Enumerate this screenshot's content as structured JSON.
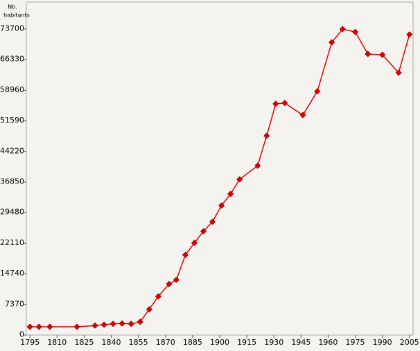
{
  "chart_data": {
    "type": "line",
    "y_label_line1": "Nb.",
    "y_label_line2": "habitants",
    "x": [
      1795,
      1800,
      1806,
      1821,
      1831,
      1836,
      1841,
      1846,
      1851,
      1856,
      1861,
      1866,
      1872,
      1876,
      1881,
      1886,
      1891,
      1896,
      1901,
      1906,
      1911,
      1921,
      1926,
      1931,
      1936,
      1946,
      1954,
      1962,
      1968,
      1975,
      1982,
      1990,
      1999,
      2005
    ],
    "series": [
      {
        "color": "#e00000",
        "values": [
          2000,
          2000,
          2000,
          2000,
          2300,
          2500,
          2700,
          2800,
          2700,
          3200,
          6200,
          9300,
          12300,
          13300,
          19300,
          22200,
          25000,
          27300,
          31200,
          34000,
          37500,
          40800,
          48000,
          55700,
          55900,
          53000,
          58700,
          70500,
          73700,
          73000,
          67700,
          67500,
          63200,
          72400
        ]
      }
    ],
    "xlim": [
      1793,
      2007
    ],
    "ylim": [
      0,
      80200
    ],
    "xticks": [
      1795,
      1810,
      1825,
      1840,
      1855,
      1870,
      1885,
      1900,
      1915,
      1930,
      1945,
      1960,
      1975,
      1990,
      2005
    ],
    "yticks": [
      0,
      7370,
      14740,
      22110,
      29480,
      36850,
      44220,
      51590,
      58960,
      66330,
      73700
    ]
  }
}
